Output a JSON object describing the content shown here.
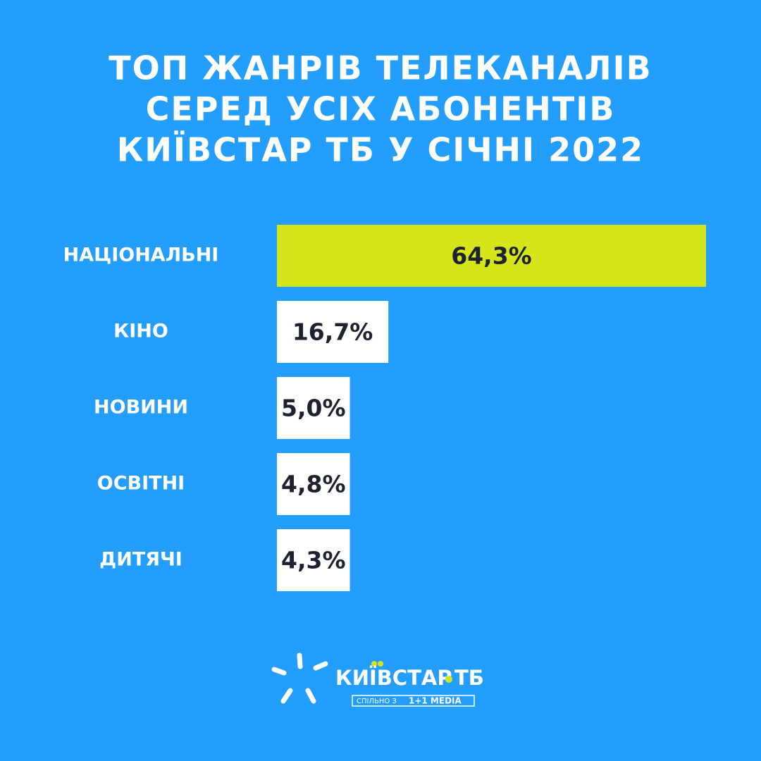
{
  "chart_data": {
    "type": "bar",
    "orientation": "horizontal",
    "title": [
      "ТОП ЖАНРІВ ТЕЛЕКАНАЛІВ",
      "СЕРЕД УСІХ АБОНЕНТІВ",
      "КИЇВСТАР ТБ У СІЧНІ 2022"
    ],
    "categories": [
      "НАЦІОНАЛЬНІ",
      "КІНО",
      "НОВИНИ",
      "ОСВІТНІ",
      "ДИТЯЧІ"
    ],
    "values": [
      64.3,
      16.7,
      5.0,
      4.8,
      4.3
    ],
    "value_labels": [
      "64,3%",
      "16,7%",
      "5,0%",
      "4,8%",
      "4,3%"
    ],
    "colors": [
      "#d4e61a",
      "#ffffff",
      "#ffffff",
      "#ffffff",
      "#ffffff"
    ]
  },
  "logo": {
    "brand": "КИЇВСТАР",
    "suffix": "ТБ",
    "tagline": "СПІЛЬНО З",
    "partner": "1+1 MEDIA"
  }
}
